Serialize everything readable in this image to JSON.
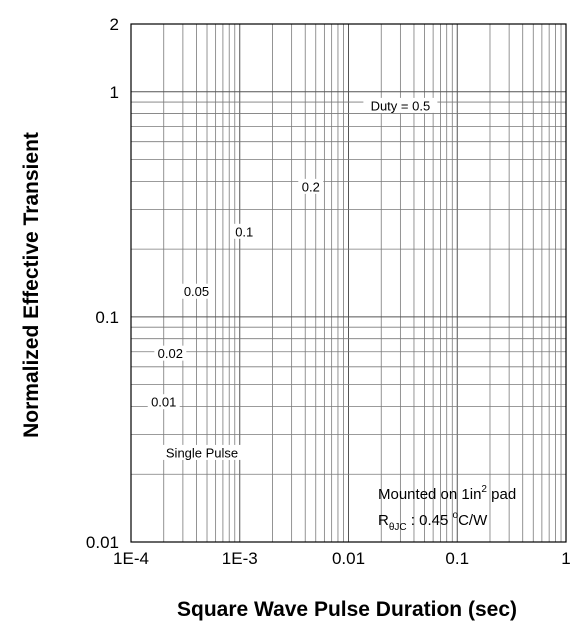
{
  "chart_data": {
    "type": "line",
    "title": "",
    "xlabel": "Square Wave Pulse Duration (sec)",
    "ylabel": "Normalized Effective Transient",
    "x_scale": "log",
    "y_scale": "log",
    "xlim": [
      0.0001,
      1
    ],
    "ylim": [
      0.01,
      2
    ],
    "x_ticks": [
      {
        "value": 0.0001,
        "label": "1E-4"
      },
      {
        "value": 0.001,
        "label": "1E-3"
      },
      {
        "value": 0.01,
        "label": "0.01"
      },
      {
        "value": 0.1,
        "label": "0.1"
      },
      {
        "value": 1,
        "label": "1"
      }
    ],
    "y_ticks": [
      {
        "value": 0.01,
        "label": "0.01"
      },
      {
        "value": 0.1,
        "label": "0.1"
      },
      {
        "value": 1,
        "label": "1"
      },
      {
        "value": 2,
        "label": "2"
      }
    ],
    "grid": true,
    "series": [],
    "annotations": [
      {
        "text": "Duty = 0.5",
        "x": 0.03,
        "y": 0.87
      },
      {
        "text": "0.2",
        "x": 0.0045,
        "y": 0.38
      },
      {
        "text": "0.1",
        "x": 0.0011,
        "y": 0.24
      },
      {
        "text": "0.05",
        "x": 0.0004,
        "y": 0.13
      },
      {
        "text": "0.02",
        "x": 0.00023,
        "y": 0.069
      },
      {
        "text": "0.01",
        "x": 0.0002,
        "y": 0.042
      },
      {
        "text": "Single Pulse",
        "x": 0.00045,
        "y": 0.025
      }
    ],
    "note": {
      "line1_prefix": "Mounted on 1in",
      "line1_sup": "2",
      "line1_suffix": " pad",
      "line2_symbol": "R",
      "line2_sub": "θJC",
      "line2_value": " : 0.45 ",
      "line2_deg": "o",
      "line2_unit": "C/W"
    }
  }
}
